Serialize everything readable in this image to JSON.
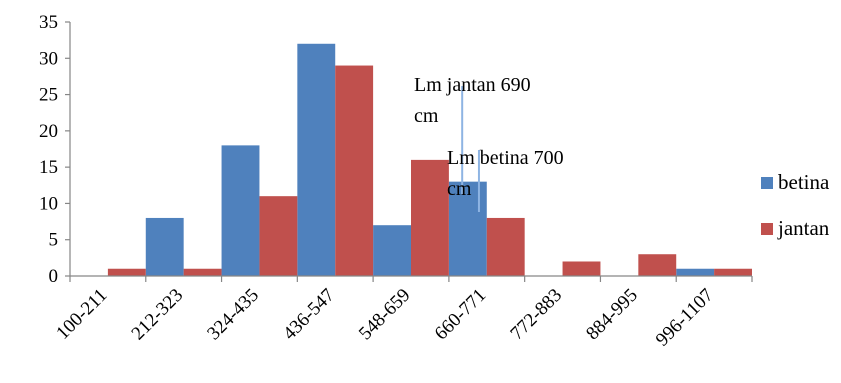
{
  "chart_data": {
    "type": "bar",
    "categories": [
      "100-211",
      "212-323",
      "324-435",
      "436-547",
      "548-659",
      "660-771",
      "772-883",
      "884-995",
      "996-1107"
    ],
    "series": [
      {
        "name": "betina",
        "values": [
          0,
          8,
          18,
          32,
          7,
          13,
          0,
          0,
          1
        ],
        "color": "#4F81BD"
      },
      {
        "name": "jantan",
        "values": [
          1,
          1,
          11,
          29,
          16,
          8,
          2,
          3,
          1
        ],
        "color": "#C0504D"
      }
    ],
    "yticks": [
      0,
      5,
      10,
      15,
      20,
      25,
      30,
      35
    ],
    "ylim": [
      0,
      35
    ],
    "legend_position": "right",
    "annotations": [
      {
        "text_lines": [
          "Lm jantan 690",
          "cm"
        ],
        "x_value": 690
      },
      {
        "text_lines": [
          "Lm betina 700",
          "cm"
        ],
        "x_value": 700
      }
    ],
    "marker_color": "#8EB4E3"
  }
}
